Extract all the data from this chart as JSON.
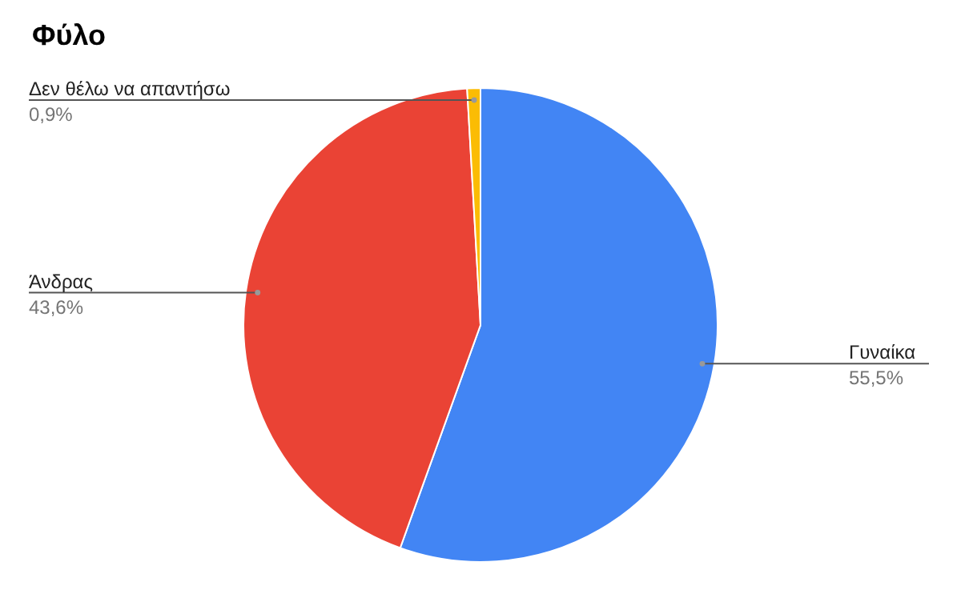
{
  "chart_data": {
    "type": "pie",
    "title": "Φύλο",
    "categories": [
      "Γυναίκα",
      "Άνδρας",
      "Δεν θέλω να απαντήσω"
    ],
    "values": [
      55.5,
      43.6,
      0.9
    ],
    "colors": [
      "#4285f4",
      "#ea4335",
      "#fbbc04"
    ],
    "value_labels": [
      "55,5%",
      "43,6%",
      "0,9%"
    ],
    "legend": false
  }
}
